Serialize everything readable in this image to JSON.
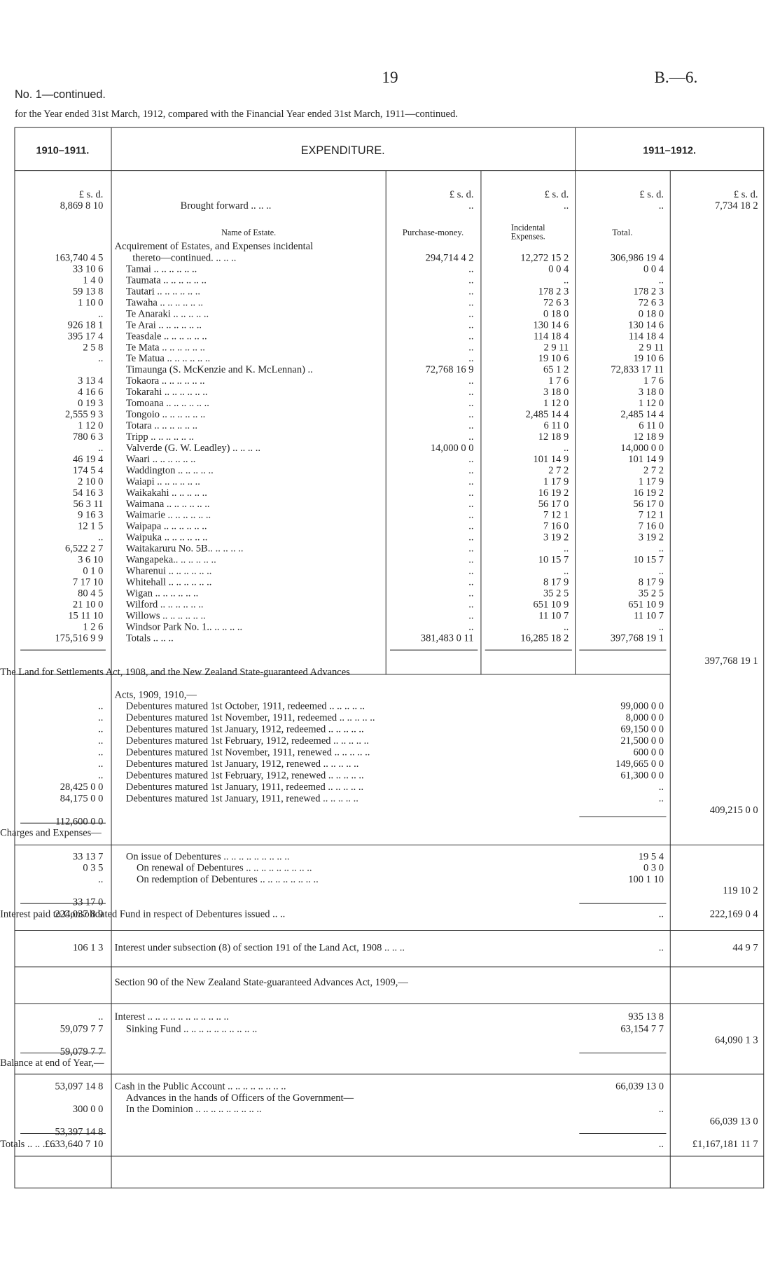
{
  "header": {
    "page_number": "19",
    "reference": "B.—6.",
    "statement": "No. 1—continued.",
    "subtitle": "for the Year ended 31st March, 1912, compared with the Financial Year ended 31st March, 1911—continued."
  },
  "table": {
    "column_headers": {
      "previous_year": "1910–1911.",
      "expenditure": "EXPENDITURE.",
      "current_year": "1911–1912."
    },
    "money_heading": "£ s. d.",
    "subheads": {
      "name": "Name of Estate.",
      "purchase": "Purchase-money.",
      "incidental": [
        "Incidental",
        "Expenses."
      ],
      "total": "Total."
    },
    "rows": [
      {
        "previous": "8,869 8 10",
        "label": "Brought forward .. .. ..",
        "purchase": "..",
        "incidental": "..",
        "total": "..",
        "current": "7,734 18 2"
      },
      {
        "label": "Acquirement of Estates, and Expenses incidental"
      },
      {
        "previous": "163,740 4 5",
        "label": "thereto—continued. .. .. ..",
        "purchase": "294,714 4 2",
        "incidental": "12,272 15 2",
        "total": "306,986 19 4"
      },
      {
        "previous": "33 10 6",
        "label": "Tamai .. .. .. .. .. ..",
        "purchase": "..",
        "incidental": "0 0 4",
        "total": "0 0 4"
      },
      {
        "previous": "1 4 0",
        "label": "Taumata .. .. .. .. .. ..",
        "purchase": "..",
        "incidental": "..",
        "total": ".."
      },
      {
        "previous": "59 13 8",
        "label": "Tautari .. .. .. .. .. ..",
        "purchase": "..",
        "incidental": "178 2 3",
        "total": "178 2 3"
      },
      {
        "previous": "1 10 0",
        "label": "Tawaha .. .. .. .. .. ..",
        "purchase": "..",
        "incidental": "72 6 3",
        "total": "72 6 3"
      },
      {
        "previous": "..",
        "label": "Te Anaraki .. .. .. .. ..",
        "purchase": "..",
        "incidental": "0 18 0",
        "total": "0 18 0"
      },
      {
        "previous": "926 18 1",
        "label": "Te Arai .. .. .. .. .. ..",
        "purchase": "..",
        "incidental": "130 14 6",
        "total": "130 14 6"
      },
      {
        "previous": "395 17 4",
        "label": "Teasdale .. .. .. .. .. ..",
        "purchase": "..",
        "incidental": "114 18 4",
        "total": "114 18 4"
      },
      {
        "previous": "2 5 8",
        "label": "Te Mata .. .. .. .. .. ..",
        "purchase": "..",
        "incidental": "2 9 11",
        "total": "2 9 11"
      },
      {
        "previous": "..",
        "label": "Te Matua .. .. .. .. .. ..",
        "purchase": "..",
        "incidental": "19 10 6",
        "total": "19 10 6"
      },
      {
        "label": "Timaunga (S. McKenzie and K. McLennan) ..",
        "purchase": "72,768 16 9",
        "incidental": "65 1 2",
        "total": "72,833 17 11"
      },
      {
        "previous": "3 13 4",
        "label": "Tokaora .. .. .. .. .. ..",
        "purchase": "..",
        "incidental": "1 7 6",
        "total": "1 7 6"
      },
      {
        "previous": "4 16 6",
        "label": "Tokarahi .. .. .. .. .. ..",
        "purchase": "..",
        "incidental": "3 18 0",
        "total": "3 18 0"
      },
      {
        "previous": "0 19 3",
        "label": "Tomoana .. .. .. .. .. ..",
        "purchase": "..",
        "incidental": "1 12 0",
        "total": "1 12 0"
      },
      {
        "previous": "2,555 9 3",
        "label": "Tongoio .. .. .. .. .. ..",
        "purchase": "..",
        "incidental": "2,485 14 4",
        "total": "2,485 14 4"
      },
      {
        "previous": "1 12 0",
        "label": "Totara .. .. .. .. .. ..",
        "purchase": "..",
        "incidental": "6 11 0",
        "total": "6 11 0"
      },
      {
        "previous": "780 6 3",
        "label": "Tripp .. .. .. .. .. ..",
        "purchase": "..",
        "incidental": "12 18 9",
        "total": "12 18 9"
      },
      {
        "previous": "..",
        "label": "Valverde (G. W. Leadley) .. .. .. ..",
        "purchase": "14,000 0 0",
        "incidental": "..",
        "total": "14,000 0 0"
      },
      {
        "previous": "46 19 4",
        "label": "Waari .. .. .. .. .. ..",
        "purchase": "..",
        "incidental": "101 14 9",
        "total": "101 14 9"
      },
      {
        "previous": "174 5 4",
        "label": "Waddington .. .. .. .. ..",
        "purchase": "..",
        "incidental": "2 7 2",
        "total": "2 7 2"
      },
      {
        "previous": "2 10 0",
        "label": "Waiapi .. .. .. .. .. ..",
        "purchase": "..",
        "incidental": "1 17 9",
        "total": "1 17 9"
      },
      {
        "previous": "54 16 3",
        "label": "Waikakahi .. .. .. .. ..",
        "purchase": "..",
        "incidental": "16 19 2",
        "total": "16 19 2"
      },
      {
        "previous": "56 3 11",
        "label": "Waimana .. .. .. .. .. ..",
        "purchase": "..",
        "incidental": "56 17 0",
        "total": "56 17 0"
      },
      {
        "previous": "9 16 3",
        "label": "Waimarie .. .. .. .. .. ..",
        "purchase": "..",
        "incidental": "7 12 1",
        "total": "7 12 1"
      },
      {
        "previous": "12 1 5",
        "label": "Waipapa .. .. .. .. .. ..",
        "purchase": "..",
        "incidental": "7 16 0",
        "total": "7 16 0"
      },
      {
        "previous": "..",
        "label": "Waipuka .. .. .. .. .. ..",
        "purchase": "..",
        "incidental": "3 19 2",
        "total": "3 19 2"
      },
      {
        "previous": "6,522 2 7",
        "label": "Waitakaruru No. 5B.. .. .. .. ..",
        "purchase": "..",
        "incidental": "..",
        "total": ".."
      },
      {
        "previous": "3 6 10",
        "label": "Wangapeka.. .. .. .. .. ..",
        "purchase": "..",
        "incidental": "10 15 7",
        "total": "10 15 7"
      },
      {
        "previous": "0 1 0",
        "label": "Wharenui .. .. .. .. .. ..",
        "purchase": "..",
        "incidental": "..",
        "total": ".."
      },
      {
        "previous": "7 17 10",
        "label": "Whitehall .. .. .. .. .. ..",
        "purchase": "..",
        "incidental": "8 17 9",
        "total": "8 17 9"
      },
      {
        "previous": "80 4 5",
        "label": "Wigan .. .. .. .. .. ..",
        "purchase": "..",
        "incidental": "35 2 5",
        "total": "35 2 5"
      },
      {
        "previous": "21 10 0",
        "label": "Wilford .. .. .. .. .. ..",
        "purchase": "..",
        "incidental": "651 10 9",
        "total": "651 10 9"
      },
      {
        "previous": "15 11 10",
        "label": "Willows .. .. .. .. .. ..",
        "purchase": "..",
        "incidental": "11 10 7",
        "total": "11 10 7"
      },
      {
        "previous": "1 2 6",
        "label": "Windsor Park No. 1.. .. .. .. ..",
        "purchase": "..",
        "incidental": "..",
        "total": ".."
      },
      {
        "previous": "175,516 9 9",
        "label": "Totals .. .. ..",
        "purchase": "381,483 0 11",
        "incidental": "16,285 18 2",
        "total": "397,768 19 1"
      },
      {
        "current": "397,768 19 1"
      },
      {
        "label": "The Land for Settlements Act, 1908, and the New Zealand State-guaranteed Advances"
      },
      {
        "label": "Acts, 1909, 1910,—"
      },
      {
        "previous": "..",
        "label": "Debentures matured 1st October, 1911, redeemed .. .. .. .. ..",
        "total": "99,000 0 0"
      },
      {
        "previous": "..",
        "label": "Debentures matured 1st November, 1911, redeemed .. .. .. .. ..",
        "total": "8,000 0 0"
      },
      {
        "previous": "..",
        "label": "Debentures matured 1st January, 1912, redeemed .. .. .. .. ..",
        "total": "69,150 0 0"
      },
      {
        "previous": "..",
        "label": "Debentures matured 1st February, 1912, redeemed .. .. .. .. ..",
        "total": "21,500 0 0"
      },
      {
        "previous": "..",
        "label": "Debentures matured 1st November, 1911, renewed .. .. .. .. ..",
        "total": "600 0 0"
      },
      {
        "previous": "..",
        "label": "Debentures matured 1st January, 1912, renewed .. .. .. .. ..",
        "total": "149,665 0 0"
      },
      {
        "previous": "..",
        "label": "Debentures matured 1st February, 1912, renewed .. .. .. .. ..",
        "total": "61,300 0 0"
      },
      {
        "previous": "28,425 0 0",
        "label": "Debentures matured 1st January, 1911, redeemed .. .. .. .. ..",
        "total": ".."
      },
      {
        "previous": "84,175 0 0",
        "label": "Debentures matured 1st January, 1911, renewed .. .. .. .. ..",
        "total": ".."
      },
      {
        "current": "409,215 0 0"
      },
      {
        "previous": "112,600 0 0"
      },
      {
        "label": "Charges and Expenses—"
      },
      {
        "previous": "33 13 7",
        "label": "On issue of Debentures .. .. .. .. .. .. .. .. ..",
        "total": "19 5 4"
      },
      {
        "previous": "0 3 5",
        "label": "On renewal of Debentures .. .. .. .. .. .. .. .. ..",
        "total": "0 3 0"
      },
      {
        "previous": "..",
        "label": "On redemption of Debentures .. .. .. .. .. .. .. ..",
        "total": "100 1 10"
      },
      {
        "current": "119 10 2"
      },
      {
        "previous": "33 17 0"
      },
      {
        "previous": "224,037 8 9",
        "label": "Interest paid to Consolidated Fund in respect of Debentures issued .. ..",
        "total": "..",
        "current": "222,169 0 4"
      },
      {
        "previous": "106 1 3",
        "label": "Interest under subsection (8) of section 191 of the Land Act, 1908 .. .. ..",
        "total": "..",
        "current": "44 9 7"
      },
      {
        "label": "Section 90 of the New Zealand State-guaranteed Advances Act, 1909,—"
      },
      {
        "previous": "..",
        "label": "Interest .. .. .. .. .. .. .. .. .. .. ..",
        "total": "935 13 8"
      },
      {
        "previous": "59,079 7 7",
        "label": "Sinking Fund .. .. .. .. .. .. .. .. .. ..",
        "total": "63,154 7 7"
      },
      {
        "current": "64,090 1 3"
      },
      {
        "previous": "59,079 7 7"
      },
      {
        "label": "Balance at end of Year,—"
      },
      {
        "previous": "53,097 14 8",
        "label": "Cash in the Public Account .. .. .. .. .. .. .. ..",
        "total": "66,039 13 0"
      },
      {
        "label": "Advances in the hands of Officers of the Government—"
      },
      {
        "previous": "300 0 0",
        "label": "In the Dominion .. .. .. .. .. .. .. .. ..",
        "total": ".."
      },
      {
        "current": "66,039 13 0"
      },
      {
        "previous": "53,397 14 8"
      },
      {
        "previous": "£633,640 7 10",
        "label": "Totals .. .. .. ..",
        "total": "..",
        "current": "£1,167,181 11 7"
      }
    ]
  }
}
